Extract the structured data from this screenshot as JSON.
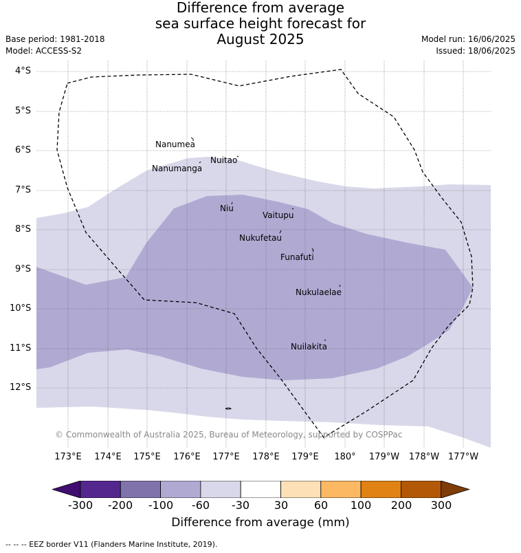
{
  "title": {
    "line1": "Difference from average",
    "line2": "sea surface height forecast for",
    "line3": "August 2025"
  },
  "meta": {
    "base_period": "Base period: 1981-2018",
    "model": "Model: ACCESS-S2",
    "model_run": "Model run: 16/06/2025",
    "issued": "Issued: 18/06/2025"
  },
  "axes": {
    "lat_labels": [
      "4°S",
      "5°S",
      "6°S",
      "7°S",
      "8°S",
      "9°S",
      "10°S",
      "11°S",
      "12°S"
    ],
    "lon_labels": [
      "173°E",
      "174°E",
      "175°E",
      "176°E",
      "177°E",
      "178°E",
      "179°E",
      "180°",
      "179°W",
      "178°W",
      "177°W"
    ]
  },
  "places": [
    {
      "name": "Nanumea"
    },
    {
      "name": "Nuitao"
    },
    {
      "name": "Nanumanga"
    },
    {
      "name": "Niu"
    },
    {
      "name": "Vaitupu"
    },
    {
      "name": "Nukufetau"
    },
    {
      "name": "Funafuti"
    },
    {
      "name": "Nukulaelae"
    },
    {
      "name": "Nuilakita"
    }
  ],
  "copyright": "© Commonwealth of Australia 2025, Bureau of Meteorology, supported by COSPPac",
  "colorbar": {
    "ticks": [
      "-300",
      "-200",
      "-100",
      "-60",
      "-30",
      "30",
      "60",
      "100",
      "200",
      "300"
    ],
    "title": "Difference from average (mm)",
    "colors": [
      "#3f0e6e",
      "#54278f",
      "#8073ac",
      "#b0aad3",
      "#d8d8ea",
      "#ffffff",
      "#fee0b6",
      "#fdb863",
      "#e08214",
      "#b35806",
      "#7f3b08"
    ]
  },
  "eez_note": "--  --  -- EEZ border V11 (Flanders Marine Institute, 2019)."
}
